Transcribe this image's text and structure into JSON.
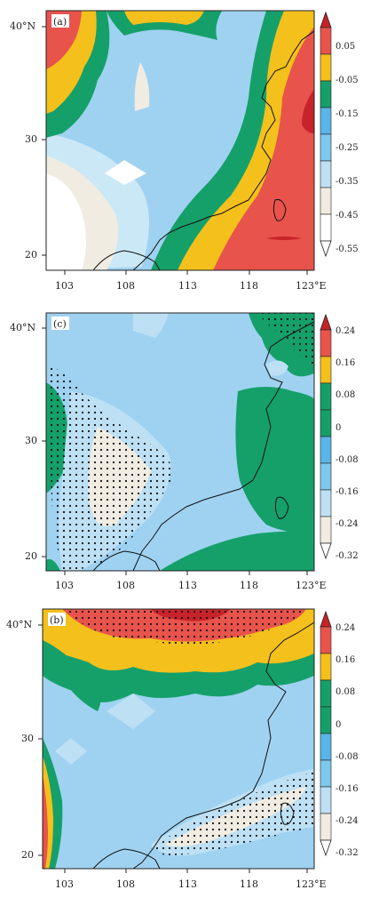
{
  "panels": [
    {
      "id": "a",
      "label": "(a)",
      "x_ticks": [
        "103",
        "108",
        "113",
        "118",
        "123°E"
      ],
      "y_ticks": [
        "40°N",
        "30",
        "20"
      ],
      "colorbar_labels": [
        "0.05",
        "-0.05",
        "-0.15",
        "-0.25",
        "-0.35",
        "-0.45",
        "-0.55"
      ],
      "colorbar_colors": [
        "#c8232a",
        "#e8534c",
        "#f4c01b",
        "#15a06a",
        "#7ec8ee",
        "#bde0f4",
        "#f0ece2",
        "#ffffff"
      ]
    },
    {
      "id": "c",
      "label": "(c)",
      "x_ticks": [
        "103",
        "108",
        "113",
        "118",
        "123°E"
      ],
      "y_ticks": [
        "40°N",
        "30",
        "20"
      ],
      "colorbar_labels": [
        "0.24",
        "0.16",
        "0.08",
        "0",
        "-0.08",
        "-0.16",
        "-0.24",
        "-0.32"
      ],
      "colorbar_colors": [
        "#c8232a",
        "#e8534c",
        "#f4c01b",
        "#15a06a",
        "#5ab5e8",
        "#7ec8ee",
        "#bde0f4",
        "#f0ece2",
        "#ffffff"
      ]
    },
    {
      "id": "b",
      "label": "(b)",
      "x_ticks": [
        "103",
        "108",
        "113",
        "118",
        "123°E"
      ],
      "y_ticks": [
        "40°N",
        "30",
        "20"
      ],
      "colorbar_labels": [
        "0.24",
        "0.16",
        "0.08",
        "0",
        "-0.08",
        "-0.16",
        "-0.24",
        "-0.32"
      ],
      "colorbar_colors": [
        "#c8232a",
        "#e8534c",
        "#f4c01b",
        "#15a06a",
        "#5ab5e8",
        "#7ec8ee",
        "#bde0f4",
        "#f0ece2",
        "#ffffff"
      ]
    }
  ]
}
